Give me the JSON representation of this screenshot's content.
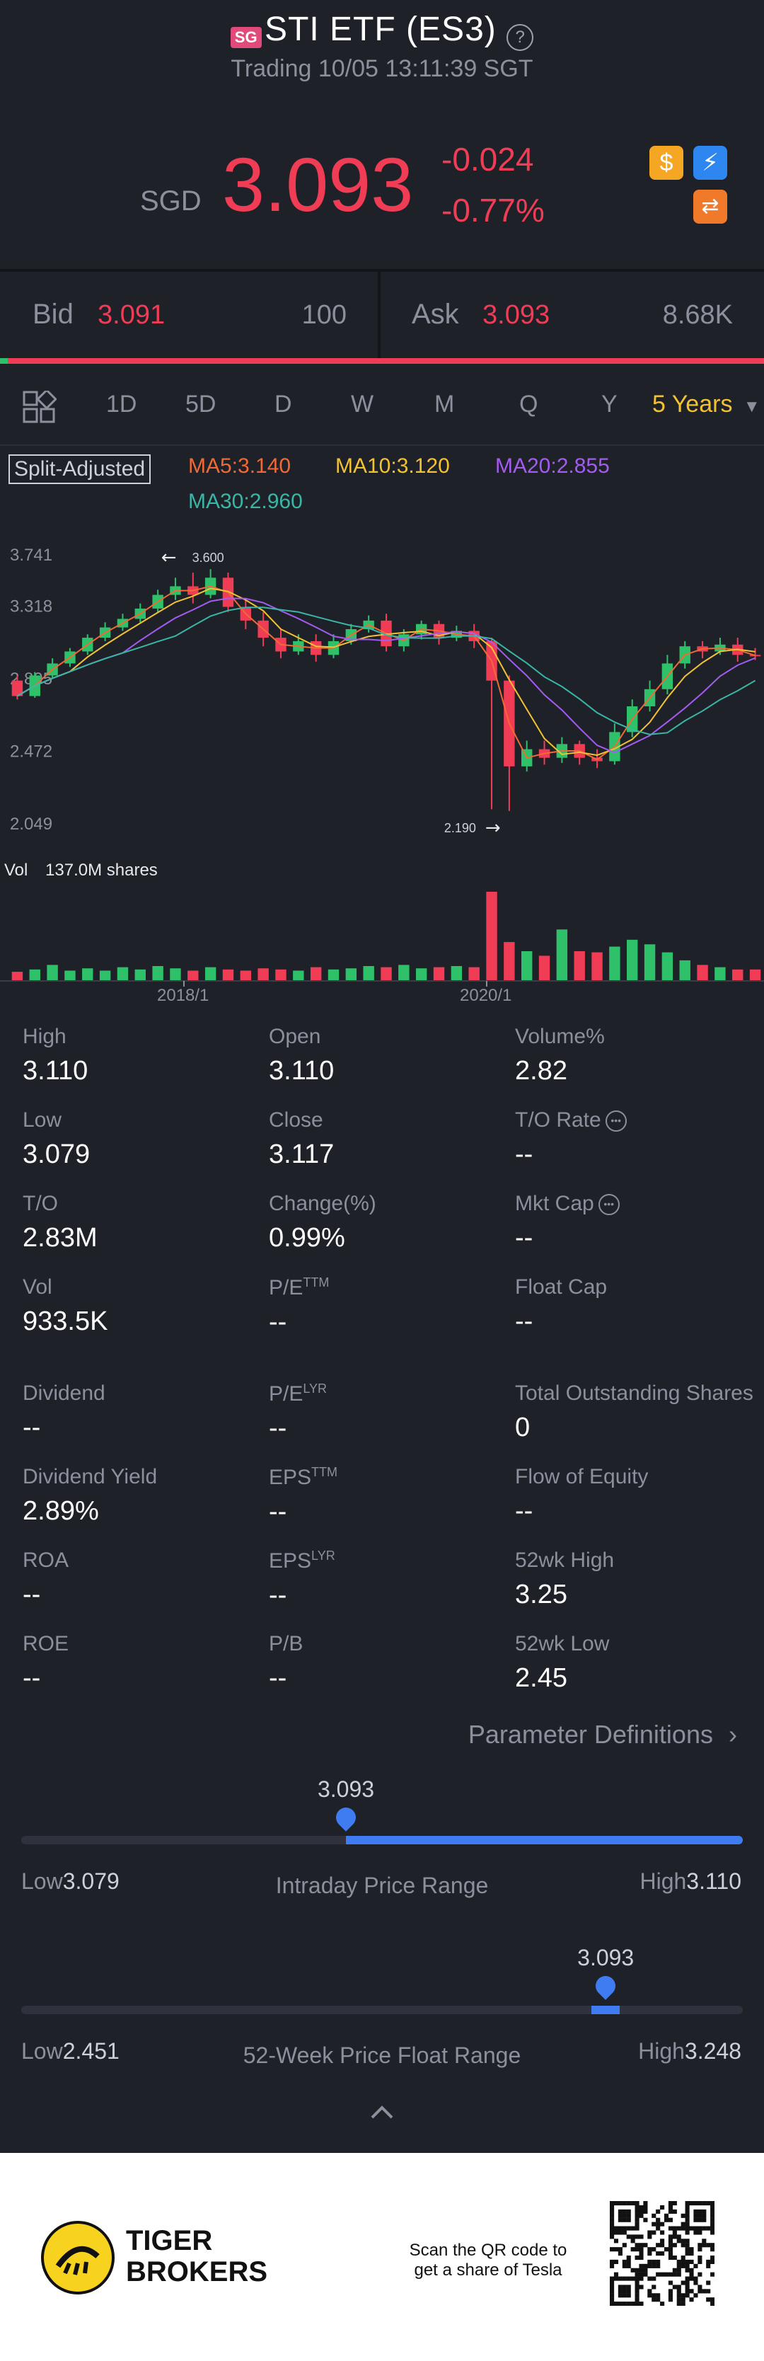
{
  "header": {
    "market_badge": "SG",
    "title": "STI ETF (ES3)",
    "status": "Trading 10/05 13:11:39 SGT"
  },
  "quote": {
    "currency": "SGD",
    "price": "3.093",
    "change": "-0.024",
    "change_pct": "-0.77%",
    "icons": [
      "dollar-coin-icon",
      "lightning-icon",
      "exchange-icon"
    ]
  },
  "orderbook": {
    "bid_label": "Bid",
    "bid_price": "3.091",
    "bid_size": "100",
    "ask_label": "Ask",
    "ask_price": "3.093",
    "ask_size": "8.68K",
    "bid_share": 0.01
  },
  "timeframes": {
    "items": [
      "1D",
      "5D",
      "D",
      "W",
      "M",
      "Q",
      "Y"
    ],
    "selected": "5 Years"
  },
  "indicators": {
    "adjust": "Split-Adjusted",
    "ma5": "MA5:3.140",
    "ma10": "MA10:3.120",
    "ma20": "MA20:2.855",
    "ma30": "MA30:2.960",
    "colors": {
      "ma5": "#f06a35",
      "ma10": "#f2c233",
      "ma20": "#a35bf0",
      "ma30": "#39b6a5"
    }
  },
  "chart_data": {
    "type": "candlestick",
    "y_ticks": [
      "3.741",
      "3.318",
      "2.895",
      "2.472",
      "2.049"
    ],
    "ylim": [
      2.049,
      3.741
    ],
    "max_label": "3.600",
    "min_label": "2.190",
    "volume_label": "Vol",
    "volume_value": "137.0M shares",
    "x_ticks": [
      "2018/1",
      "2020/1"
    ],
    "candles": [
      [
        2.95,
        2.86,
        2.98,
        2.84
      ],
      [
        2.86,
        2.98,
        3.0,
        2.85
      ],
      [
        2.98,
        3.05,
        3.08,
        2.96
      ],
      [
        3.05,
        3.12,
        3.14,
        3.03
      ],
      [
        3.12,
        3.2,
        3.22,
        3.1
      ],
      [
        3.2,
        3.26,
        3.29,
        3.18
      ],
      [
        3.26,
        3.31,
        3.34,
        3.24
      ],
      [
        3.31,
        3.37,
        3.4,
        3.29
      ],
      [
        3.37,
        3.45,
        3.48,
        3.35
      ],
      [
        3.45,
        3.5,
        3.55,
        3.42
      ],
      [
        3.5,
        3.45,
        3.58,
        3.4
      ],
      [
        3.45,
        3.55,
        3.6,
        3.43
      ],
      [
        3.55,
        3.38,
        3.58,
        3.35
      ],
      [
        3.38,
        3.3,
        3.42,
        3.25
      ],
      [
        3.3,
        3.2,
        3.35,
        3.15
      ],
      [
        3.2,
        3.12,
        3.25,
        3.08
      ],
      [
        3.12,
        3.18,
        3.22,
        3.1
      ],
      [
        3.18,
        3.1,
        3.22,
        3.06
      ],
      [
        3.1,
        3.18,
        3.22,
        3.08
      ],
      [
        3.18,
        3.25,
        3.28,
        3.16
      ],
      [
        3.25,
        3.3,
        3.33,
        3.23
      ],
      [
        3.3,
        3.15,
        3.34,
        3.12
      ],
      [
        3.15,
        3.22,
        3.25,
        3.12
      ],
      [
        3.22,
        3.28,
        3.3,
        3.19
      ],
      [
        3.28,
        3.2,
        3.3,
        3.16
      ],
      [
        3.2,
        3.24,
        3.27,
        3.18
      ],
      [
        3.24,
        3.18,
        3.28,
        3.14
      ],
      [
        3.18,
        2.95,
        3.2,
        2.2
      ],
      [
        2.95,
        2.45,
        2.98,
        2.19
      ],
      [
        2.45,
        2.55,
        2.6,
        2.42
      ],
      [
        2.55,
        2.5,
        2.6,
        2.46
      ],
      [
        2.5,
        2.58,
        2.62,
        2.47
      ],
      [
        2.58,
        2.5,
        2.6,
        2.46
      ],
      [
        2.5,
        2.48,
        2.55,
        2.44
      ],
      [
        2.48,
        2.65,
        2.7,
        2.46
      ],
      [
        2.65,
        2.8,
        2.84,
        2.62
      ],
      [
        2.8,
        2.9,
        2.95,
        2.77
      ],
      [
        2.9,
        3.05,
        3.1,
        2.87
      ],
      [
        3.05,
        3.15,
        3.18,
        3.02
      ],
      [
        3.15,
        3.12,
        3.18,
        3.08
      ],
      [
        3.12,
        3.16,
        3.2,
        3.1
      ],
      [
        3.16,
        3.1,
        3.2,
        3.06
      ],
      [
        3.1,
        3.093,
        3.14,
        3.07
      ]
    ],
    "volumes": [
      8,
      10,
      14,
      9,
      11,
      9,
      12,
      10,
      13,
      11,
      9,
      12,
      10,
      9,
      11,
      10,
      9,
      12,
      10,
      11,
      13,
      12,
      14,
      11,
      12,
      13,
      12,
      78,
      34,
      26,
      22,
      45,
      26,
      25,
      30,
      36,
      32,
      25,
      18,
      14,
      12,
      10,
      10
    ]
  },
  "stats": [
    {
      "label": "High",
      "value": "3.110"
    },
    {
      "label": "Open",
      "value": "3.110"
    },
    {
      "label": "Volume%",
      "value": "2.82"
    },
    {
      "label": "Low",
      "value": "3.079"
    },
    {
      "label": "Close",
      "value": "3.117"
    },
    {
      "label": "T/O Rate",
      "value": "--"
    },
    {
      "label": "T/O",
      "value": "2.83M"
    },
    {
      "label": "Change(%)",
      "value": "0.99%"
    },
    {
      "label": "Mkt Cap",
      "value": "--"
    },
    {
      "label": "Vol",
      "value": "933.5K"
    },
    {
      "label": "P/E",
      "sup": "TTM",
      "value": "--"
    },
    {
      "label": "Float Cap",
      "value": "--"
    },
    {
      "label": "Dividend",
      "value": "--"
    },
    {
      "label": "P/E",
      "sup": "LYR",
      "value": "--"
    },
    {
      "label": "Total Outstanding Shares",
      "value": "0"
    },
    {
      "label": "Dividend Yield",
      "value": "2.89%"
    },
    {
      "label": "EPS",
      "sup": "TTM",
      "value": "--"
    },
    {
      "label": "Flow of Equity",
      "value": "--"
    },
    {
      "label": "ROA",
      "value": "--"
    },
    {
      "label": "EPS",
      "sup": "LYR",
      "value": "--"
    },
    {
      "label": "52wk High",
      "value": "3.25"
    },
    {
      "label": "ROE",
      "value": "--"
    },
    {
      "label": "P/B",
      "value": "--"
    },
    {
      "label": "52wk Low",
      "value": "2.45"
    }
  ],
  "param_link": "Parameter Definitions",
  "intraday": {
    "current": "3.093",
    "low_label": "Low",
    "low": "3.079",
    "high_label": "High",
    "high": "3.110",
    "title": "Intraday Price Range",
    "position": 0.45
  },
  "week52": {
    "current": "3.093",
    "low_label": "Low",
    "low": "2.451",
    "high_label": "High",
    "high": "3.248",
    "title": "52-Week Price Float Range",
    "position": 0.81
  },
  "footer": {
    "brand_line1": "TIGER",
    "brand_line2": "BROKERS",
    "qr_line1": "Scan the QR code to",
    "qr_line2": "get a share of Tesla"
  }
}
